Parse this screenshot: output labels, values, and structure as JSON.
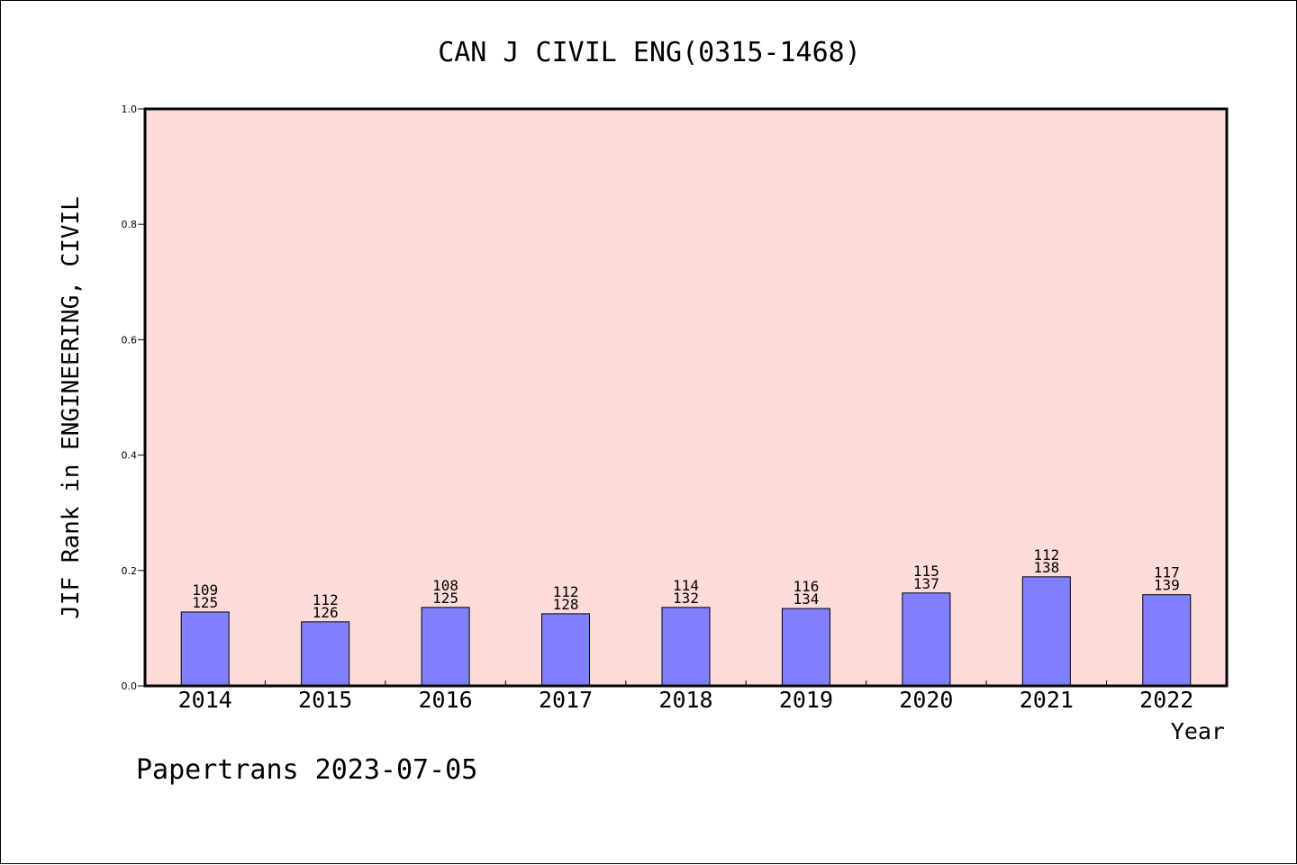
{
  "chart_data": {
    "type": "bar",
    "title": "CAN J CIVIL ENG(0315-1468)",
    "xlabel": "Year",
    "ylabel": "JIF Rank in ENGINEERING, CIVIL",
    "ylim": [
      0,
      1.0
    ],
    "yticks": [
      "0.0",
      "0.2",
      "0.4",
      "0.6",
      "0.8",
      "1.0"
    ],
    "categories": [
      "2014",
      "2015",
      "2016",
      "2017",
      "2018",
      "2019",
      "2020",
      "2021",
      "2022"
    ],
    "values": [
      0.128,
      0.111,
      0.136,
      0.125,
      0.136,
      0.134,
      0.161,
      0.189,
      0.158
    ],
    "labels": [
      [
        "109",
        "125"
      ],
      [
        "112",
        "126"
      ],
      [
        "108",
        "125"
      ],
      [
        "112",
        "128"
      ],
      [
        "114",
        "132"
      ],
      [
        "116",
        "134"
      ],
      [
        "115",
        "137"
      ],
      [
        "112",
        "138"
      ],
      [
        "117",
        "139"
      ]
    ],
    "grid": false,
    "colors": {
      "plot_background": "#fddbd8",
      "bar_fill": "#8080ff",
      "bar_stroke": "#000000"
    }
  },
  "footer": "Papertrans 2023-07-05"
}
